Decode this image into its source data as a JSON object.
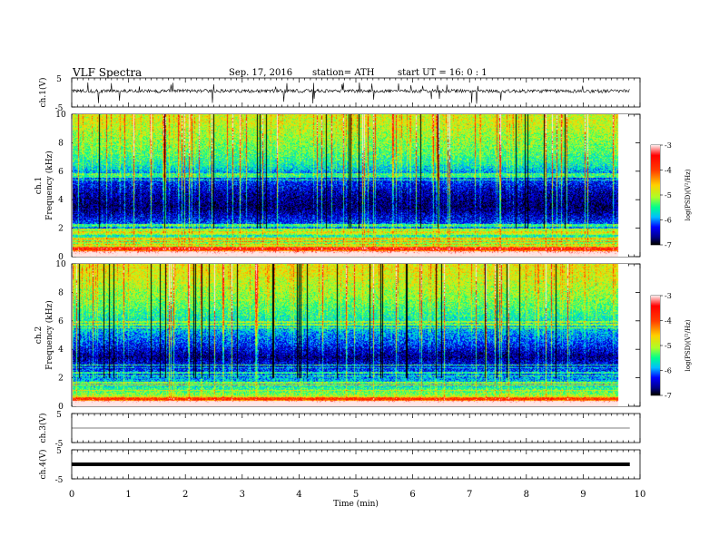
{
  "header": {
    "title": "VLF Spectra",
    "date": "Sep. 17, 2016",
    "station": "station= ATH",
    "start": "start  UT =   16: 0  : 1"
  },
  "colorbar": {
    "label": "log(PSD)(V²/Hz)",
    "ticks": [
      "-3",
      "-4",
      "-5",
      "-6",
      "-7"
    ],
    "range": [
      -7,
      -3
    ],
    "colors": [
      "#000000",
      "#00008b",
      "#0000ff",
      "#00bfff",
      "#00ff7f",
      "#adff2f",
      "#ffd700",
      "#ff4500",
      "#ff0000",
      "#ffffff"
    ]
  },
  "chart_data": [
    {
      "type": "line",
      "panel": "ch1-waveform",
      "ylabel": "ch.1(V)",
      "yticks": [
        "5",
        "-5"
      ],
      "ylim": [
        -5,
        5
      ],
      "xlim": [
        0,
        10
      ],
      "description": "noisy waveform with spikes up to ~+2 V and down to ~-4 V",
      "baseline_v": 0.5,
      "data_end_min": 9.82
    },
    {
      "type": "heatmap",
      "panel": "ch1-spectrogram",
      "ylabel_channel": "ch.1",
      "ylabel": "Frequency  (kHz)",
      "yticks": [
        "0",
        "2",
        "4",
        "6",
        "8",
        "10"
      ],
      "ylim": [
        0,
        10
      ],
      "xlim": [
        0,
        10
      ],
      "data_end_min": 9.82,
      "profile_logpsd": [
        {
          "f": 0.2,
          "v": -3.8
        },
        {
          "f": 0.8,
          "v": -5.0
        },
        {
          "f": 1.5,
          "v": -5.6
        },
        {
          "f": 2.5,
          "v": -6.3
        },
        {
          "f": 3.5,
          "v": -6.8
        },
        {
          "f": 4.5,
          "v": -6.6
        },
        {
          "f": 5.5,
          "v": -6.2
        },
        {
          "f": 6.5,
          "v": -5.6
        },
        {
          "f": 7.5,
          "v": -5.3
        },
        {
          "f": 8.5,
          "v": -5.1
        },
        {
          "f": 9.5,
          "v": -4.9
        }
      ]
    },
    {
      "type": "heatmap",
      "panel": "ch2-spectrogram",
      "ylabel_channel": "ch.2",
      "ylabel": "Frequency  (kHz)",
      "yticks": [
        "0",
        "2",
        "4",
        "6",
        "8",
        "10"
      ],
      "ylim": [
        0,
        10
      ],
      "xlim": [
        0,
        10
      ],
      "data_end_min": 9.82,
      "profile_logpsd": [
        {
          "f": 0.2,
          "v": -3.6
        },
        {
          "f": 0.8,
          "v": -5.1
        },
        {
          "f": 1.5,
          "v": -5.7
        },
        {
          "f": 2.5,
          "v": -6.2
        },
        {
          "f": 3.5,
          "v": -6.7
        },
        {
          "f": 4.5,
          "v": -6.2
        },
        {
          "f": 5.5,
          "v": -5.8
        },
        {
          "f": 6.5,
          "v": -5.5
        },
        {
          "f": 7.5,
          "v": -5.2
        },
        {
          "f": 8.5,
          "v": -5.0
        },
        {
          "f": 9.5,
          "v": -4.8
        }
      ]
    },
    {
      "type": "line",
      "panel": "ch3-waveform",
      "ylabel": "ch.3(V)",
      "yticks": [
        "5",
        "-5"
      ],
      "ylim": [
        -5,
        5
      ],
      "xlim": [
        0,
        10
      ],
      "baseline_v": 0.0,
      "data_end_min": 9.82
    },
    {
      "type": "line",
      "panel": "ch4-waveform",
      "ylabel": "ch.4(V)",
      "yticks": [
        "5",
        "-5"
      ],
      "ylim": [
        -5,
        5
      ],
      "xlim": [
        0,
        10
      ],
      "baseline_v": 0.0,
      "thick": true,
      "data_end_min": 9.82
    }
  ],
  "xaxis": {
    "label": "Time  (min)",
    "ticks": [
      "0",
      "1",
      "2",
      "3",
      "4",
      "5",
      "6",
      "7",
      "8",
      "9",
      "10"
    ]
  }
}
